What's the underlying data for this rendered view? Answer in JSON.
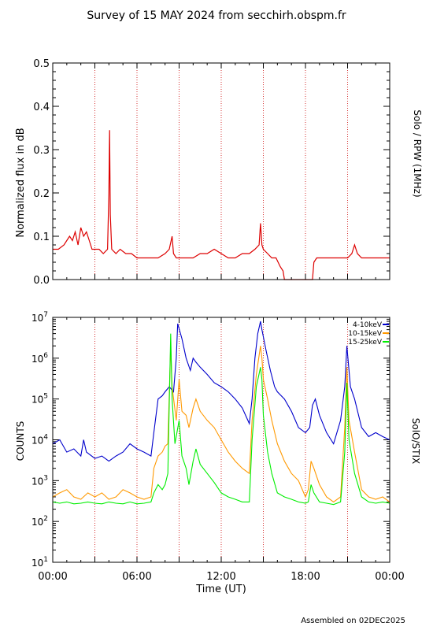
{
  "header": {
    "title": "Survey of 15 MAY 2024 from secchirh.obspm.fr"
  },
  "footer": {
    "assembled": "Assembled on 02DEC2025"
  },
  "x_axis": {
    "label": "Time (UT)",
    "ticks": [
      {
        "h": 0,
        "label": "00:00"
      },
      {
        "h": 6,
        "label": "06:00"
      },
      {
        "h": 12,
        "label": "12:00"
      },
      {
        "h": 18,
        "label": "18:00"
      },
      {
        "h": 24,
        "label": "00:00"
      }
    ],
    "dotted_hours": [
      3,
      6,
      9,
      12,
      15,
      18,
      21
    ]
  },
  "chart_data": [
    {
      "type": "line",
      "instrument": "Solo / RPW (1MHz)",
      "ylabel": "Normalized flux in dB",
      "xlim": [
        0,
        24
      ],
      "ylim": [
        0,
        0.5
      ],
      "yticks": [
        "0.0",
        "0.1",
        "0.2",
        "0.3",
        "0.4",
        "0.5"
      ],
      "color": "#dd0000",
      "series": [
        {
          "x": [
            0,
            0.4,
            0.8,
            1.0,
            1.2,
            1.4,
            1.6,
            1.8,
            2.0,
            2.2,
            2.4,
            2.6,
            2.8,
            3.0,
            3.3,
            3.6,
            3.9,
            4.0,
            4.05,
            4.1,
            4.2,
            4.5,
            4.8,
            5.2,
            5.6,
            6.0,
            6.5,
            7.0,
            7.5,
            8.0,
            8.3,
            8.5,
            8.6,
            8.8,
            9.0,
            9.5,
            10.0,
            10.5,
            11.0,
            11.5,
            12.0,
            12.5,
            13.0,
            13.5,
            14.0,
            14.4,
            14.7,
            14.8,
            14.9,
            15.0,
            15.3,
            15.6,
            15.9,
            16.2,
            16.4,
            16.5,
            17.5,
            18.5,
            18.6,
            18.8,
            19.2,
            19.6,
            20.0,
            20.5,
            21.0,
            21.3,
            21.5,
            21.7,
            22.0,
            22.5,
            23.0,
            23.5,
            24.0
          ],
          "values": [
            0.07,
            0.07,
            0.08,
            0.09,
            0.1,
            0.09,
            0.11,
            0.08,
            0.12,
            0.1,
            0.11,
            0.09,
            0.07,
            0.07,
            0.07,
            0.06,
            0.07,
            0.2,
            0.345,
            0.15,
            0.07,
            0.06,
            0.07,
            0.06,
            0.06,
            0.05,
            0.05,
            0.05,
            0.05,
            0.06,
            0.07,
            0.1,
            0.06,
            0.05,
            0.05,
            0.05,
            0.05,
            0.06,
            0.06,
            0.07,
            0.06,
            0.05,
            0.05,
            0.06,
            0.06,
            0.07,
            0.08,
            0.13,
            0.08,
            0.07,
            0.06,
            0.05,
            0.05,
            0.03,
            0.02,
            0.0,
            0.0,
            0.0,
            0.04,
            0.05,
            0.05,
            0.05,
            0.05,
            0.05,
            0.05,
            0.06,
            0.08,
            0.06,
            0.05,
            0.05,
            0.05,
            0.05,
            0.05
          ]
        }
      ]
    },
    {
      "type": "line",
      "instrument": "SolO/STIX",
      "ylabel": "COUNTS",
      "xlim": [
        0,
        24
      ],
      "ylim": [
        10,
        10000000
      ],
      "yscale": "log",
      "yticks": [
        "10",
        "100",
        "1000",
        "10000",
        "100000",
        "1000000",
        "10000000"
      ],
      "legend_position": "top-right",
      "series": [
        {
          "name": "4-10keV",
          "color": "#0000cc",
          "x": [
            0,
            0.5,
            1.0,
            1.5,
            2.0,
            2.2,
            2.4,
            3.0,
            3.5,
            4.0,
            4.5,
            5.0,
            5.5,
            6.0,
            6.5,
            7.0,
            7.2,
            7.5,
            7.8,
            8.0,
            8.3,
            8.6,
            8.8,
            8.9,
            9.2,
            9.5,
            9.8,
            10.0,
            10.2,
            10.5,
            11.0,
            11.5,
            12.0,
            12.5,
            13.0,
            13.5,
            14.0,
            14.2,
            14.4,
            14.6,
            14.8,
            14.9,
            15.2,
            15.5,
            15.8,
            16.0,
            16.5,
            17.0,
            17.5,
            18.0,
            18.3,
            18.5,
            18.7,
            19.0,
            19.5,
            20.0,
            20.5,
            20.8,
            20.95,
            21.2,
            21.5,
            22.0,
            22.5,
            23.0,
            23.5,
            24.0
          ],
          "values": [
            8000,
            10000,
            5000,
            6000,
            4000,
            10000,
            5000,
            3500,
            4000,
            3000,
            4000,
            5000,
            8000,
            6000,
            5000,
            4000,
            15000,
            100000,
            120000,
            150000,
            200000,
            150000,
            1000000,
            7000000,
            3000000,
            1000000,
            500000,
            1000000,
            800000,
            600000,
            400000,
            250000,
            200000,
            150000,
            100000,
            60000,
            25000,
            100000,
            1000000,
            4000000,
            8000000,
            5000000,
            1500000,
            500000,
            200000,
            150000,
            100000,
            50000,
            20000,
            15000,
            20000,
            70000,
            100000,
            40000,
            15000,
            8000,
            30000,
            200000,
            2000000,
            200000,
            100000,
            20000,
            12000,
            15000,
            12000,
            10000
          ]
        },
        {
          "name": "10-15keV",
          "color": "#ff9900",
          "x": [
            0,
            0.5,
            1.0,
            1.5,
            2.0,
            2.5,
            3.0,
            3.5,
            4.0,
            4.5,
            5.0,
            5.5,
            6.0,
            6.5,
            7.0,
            7.2,
            7.5,
            7.8,
            8.0,
            8.2,
            8.4,
            8.5,
            8.8,
            9.0,
            9.2,
            9.5,
            9.7,
            10.0,
            10.2,
            10.5,
            11.0,
            11.5,
            12.0,
            12.5,
            13.0,
            13.5,
            14.0,
            14.2,
            14.5,
            14.8,
            14.9,
            15.0,
            15.3,
            15.6,
            16.0,
            16.5,
            17.0,
            17.5,
            18.0,
            18.2,
            18.4,
            18.6,
            19.0,
            19.5,
            20.0,
            20.5,
            20.8,
            20.95,
            21.1,
            21.5,
            22.0,
            22.5,
            23.0,
            23.5,
            24.0
          ],
          "values": [
            400,
            500,
            600,
            400,
            350,
            500,
            400,
            500,
            350,
            400,
            600,
            500,
            400,
            350,
            400,
            2000,
            4000,
            5000,
            7000,
            8000,
            2000000,
            200000,
            30000,
            300000,
            50000,
            40000,
            20000,
            60000,
            100000,
            50000,
            30000,
            20000,
            10000,
            5000,
            3000,
            2000,
            1500,
            30000,
            400000,
            2000000,
            1000000,
            300000,
            100000,
            30000,
            8000,
            3000,
            1500,
            1000,
            400,
            600,
            3000,
            2000,
            800,
            400,
            300,
            400,
            20000,
            600000,
            30000,
            5000,
            600,
            400,
            350,
            400,
            300
          ]
        },
        {
          "name": "15-25keV",
          "color": "#00ee00",
          "x": [
            0,
            0.5,
            1.0,
            1.5,
            2.0,
            2.5,
            3.0,
            3.5,
            4.0,
            4.5,
            5.0,
            5.5,
            6.0,
            6.5,
            7.0,
            7.2,
            7.5,
            7.8,
            8.0,
            8.2,
            8.4,
            8.5,
            8.7,
            9.0,
            9.2,
            9.5,
            9.7,
            10.0,
            10.2,
            10.5,
            11.0,
            11.5,
            12.0,
            12.5,
            13.0,
            13.5,
            14.0,
            14.2,
            14.5,
            14.8,
            14.9,
            15.0,
            15.3,
            15.6,
            16.0,
            16.5,
            17.0,
            17.5,
            18.0,
            18.2,
            18.4,
            18.6,
            19.0,
            19.5,
            20.0,
            20.5,
            20.8,
            20.95,
            21.1,
            21.5,
            22.0,
            22.5,
            23.0,
            23.5,
            24.0
          ],
          "values": [
            300,
            280,
            300,
            270,
            280,
            300,
            280,
            270,
            300,
            280,
            270,
            300,
            270,
            280,
            300,
            500,
            800,
            600,
            800,
            1500,
            4000000,
            100000,
            8000,
            30000,
            4000,
            2000,
            800,
            3000,
            6000,
            2500,
            1500,
            900,
            500,
            400,
            350,
            300,
            300,
            10000,
            200000,
            600000,
            300000,
            40000,
            5000,
            1500,
            500,
            400,
            350,
            300,
            280,
            300,
            800,
            500,
            300,
            280,
            260,
            300,
            5000,
            250000,
            10000,
            1500,
            400,
            300,
            280,
            300,
            280
          ]
        }
      ]
    }
  ]
}
